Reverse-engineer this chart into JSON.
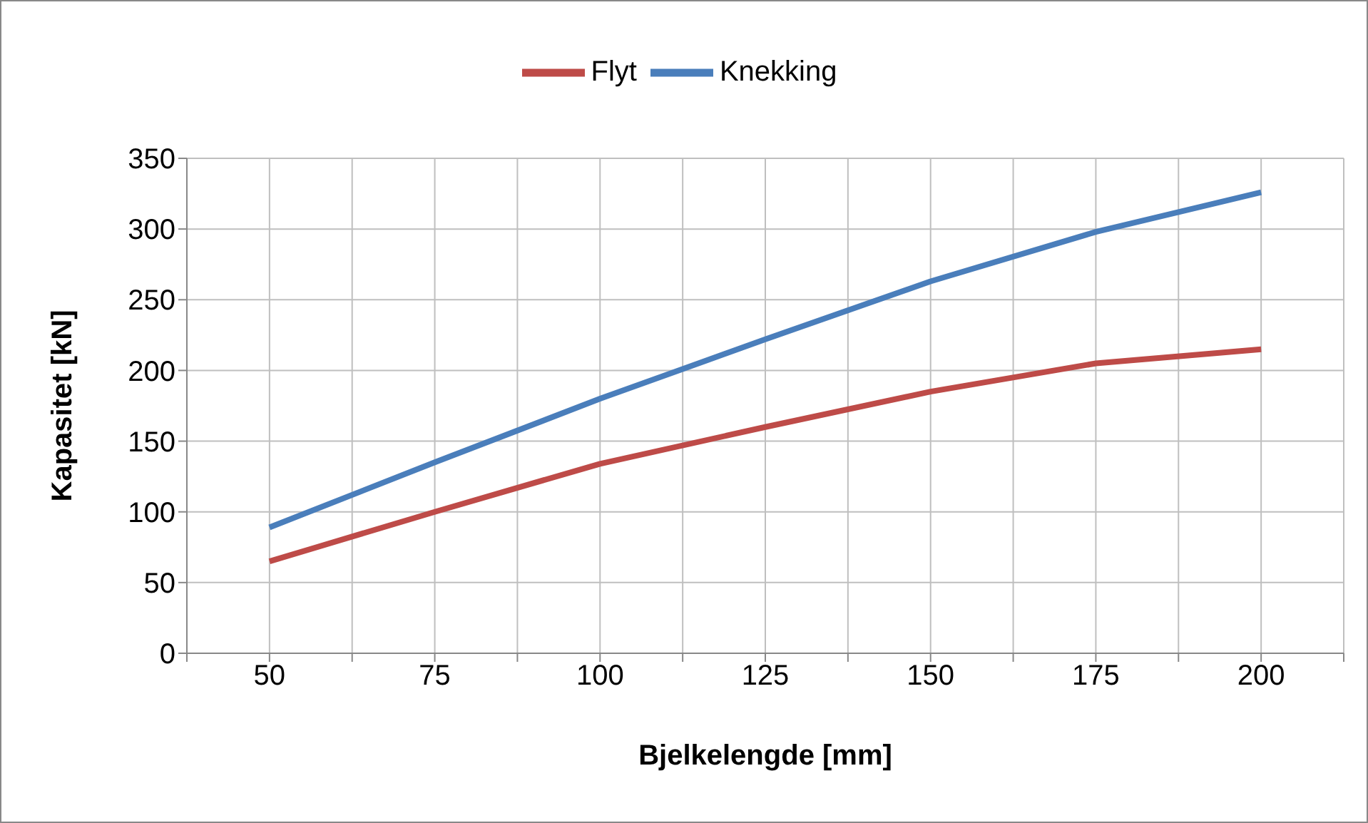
{
  "chart_data": {
    "type": "line",
    "xlabel": "Bjelkelengde [mm]",
    "ylabel": "Kapasitet [kN]",
    "x": [
      50,
      75,
      100,
      125,
      150,
      175,
      200
    ],
    "series": [
      {
        "name": "Knekking",
        "color": "#4a7ebb",
        "values": [
          89,
          135,
          180,
          222,
          263,
          298,
          326
        ]
      },
      {
        "name": "Flyt",
        "color": "#be4b48",
        "values": [
          65,
          100,
          134,
          160,
          185,
          205,
          215
        ]
      }
    ],
    "xlim": [
      37.5,
      212.5
    ],
    "xticks": [
      {
        "value": 37.5,
        "label": null
      },
      50,
      {
        "value": 62.5,
        "label": null
      },
      75,
      {
        "value": 87.5,
        "label": null
      },
      100,
      {
        "value": 112.5,
        "label": null
      },
      125,
      {
        "value": 137.5,
        "label": null
      },
      150,
      {
        "value": 162.5,
        "label": null
      },
      175,
      {
        "value": 187.5,
        "label": null
      },
      200,
      {
        "value": 212.5,
        "label": null
      }
    ],
    "ylim": [
      0,
      350
    ],
    "yticks": [
      0,
      50,
      100,
      150,
      200,
      250,
      300,
      350
    ],
    "grid": true,
    "legend": "top",
    "marker": "none",
    "line_style": "solid"
  }
}
